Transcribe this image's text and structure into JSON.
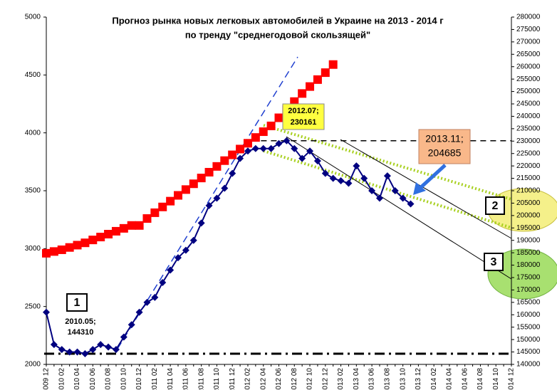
{
  "chart_data": {
    "type": "line",
    "title": "Прогноз рынка новых легковых автомобилей в Украине на 2013 - 2014 г",
    "subtitle": "по тренду \"среднегодовой скользящей\"",
    "categories": [
      "2009 12",
      null,
      "2010 02",
      null,
      "2010 04",
      null,
      "2010 06",
      null,
      "2010 08",
      null,
      "2010 10",
      null,
      "2010 12",
      null,
      "2011 02",
      null,
      "2011 04",
      null,
      "2011 06",
      null,
      "2011 08",
      null,
      "2011 10",
      null,
      "2011 12",
      null,
      "2012 02",
      null,
      "2012 04",
      null,
      "2012 06",
      null,
      "2012 08",
      null,
      "2012 10",
      null,
      "2012 12",
      null,
      "2013 02",
      null,
      "2013 04",
      null,
      "2013 06",
      null,
      "2013 08",
      null,
      "2013 10",
      null,
      "2013 12",
      null,
      "2014 02",
      null,
      "2014 04",
      null,
      "2014 06",
      null,
      "2014 08",
      null,
      "2014 10",
      null,
      "2014 12"
    ],
    "series": [
      {
        "color": "#ff0000",
        "axis": "y",
        "values": [
          2960,
          2975,
          2990,
          3010,
          3030,
          3050,
          3075,
          3100,
          3125,
          3150,
          3175,
          3200,
          3200,
          3260,
          3310,
          3360,
          3410,
          3460,
          3510,
          3560,
          3610,
          3660,
          3710,
          3760,
          3810,
          3860,
          3910,
          3960,
          4010,
          4060,
          4130,
          4200,
          4270,
          4340,
          4400,
          4460,
          4520,
          4590,
          null,
          null,
          null,
          null,
          null,
          null,
          null,
          null,
          null,
          null,
          null,
          null,
          null,
          null,
          null,
          null,
          null,
          null,
          null,
          null,
          null,
          null,
          null
        ]
      },
      {
        "color": "#000080",
        "axis": "y2",
        "values": [
          161000,
          148000,
          146000,
          145000,
          145000,
          144310,
          146000,
          148000,
          147000,
          146000,
          151000,
          156000,
          161000,
          165000,
          167000,
          173000,
          178000,
          183000,
          186000,
          190000,
          197000,
          204000,
          207000,
          211000,
          217000,
          223000,
          226000,
          227000,
          227000,
          227000,
          229000,
          230161,
          227000,
          223000,
          226000,
          222000,
          217000,
          215000,
          214000,
          213000,
          220000,
          215000,
          210000,
          207000,
          216000,
          210000,
          207000,
          204685,
          null,
          null,
          null,
          null,
          null,
          null,
          null,
          null,
          null,
          null,
          null,
          null,
          null
        ]
      }
    ],
    "ylim": [
      2000,
      5000
    ],
    "yticks": [
      2000,
      2500,
      3000,
      3500,
      4000,
      4500,
      5000
    ],
    "y2lim": [
      140000,
      280000
    ],
    "y2ticks": [
      140000,
      145000,
      150000,
      155000,
      160000,
      165000,
      170000,
      175000,
      180000,
      185000,
      190000,
      195000,
      200000,
      205000,
      210000,
      215000,
      220000,
      225000,
      230000,
      235000,
      240000,
      245000,
      250000,
      255000,
      260000,
      265000,
      270000,
      275000,
      280000
    ],
    "grid": false,
    "annotations": [
      "1",
      "2",
      "3",
      [
        "2010.05;",
        "144310"
      ],
      [
        "2012.07;",
        "230161"
      ],
      [
        "2013.11;",
        "204685"
      ]
    ]
  }
}
